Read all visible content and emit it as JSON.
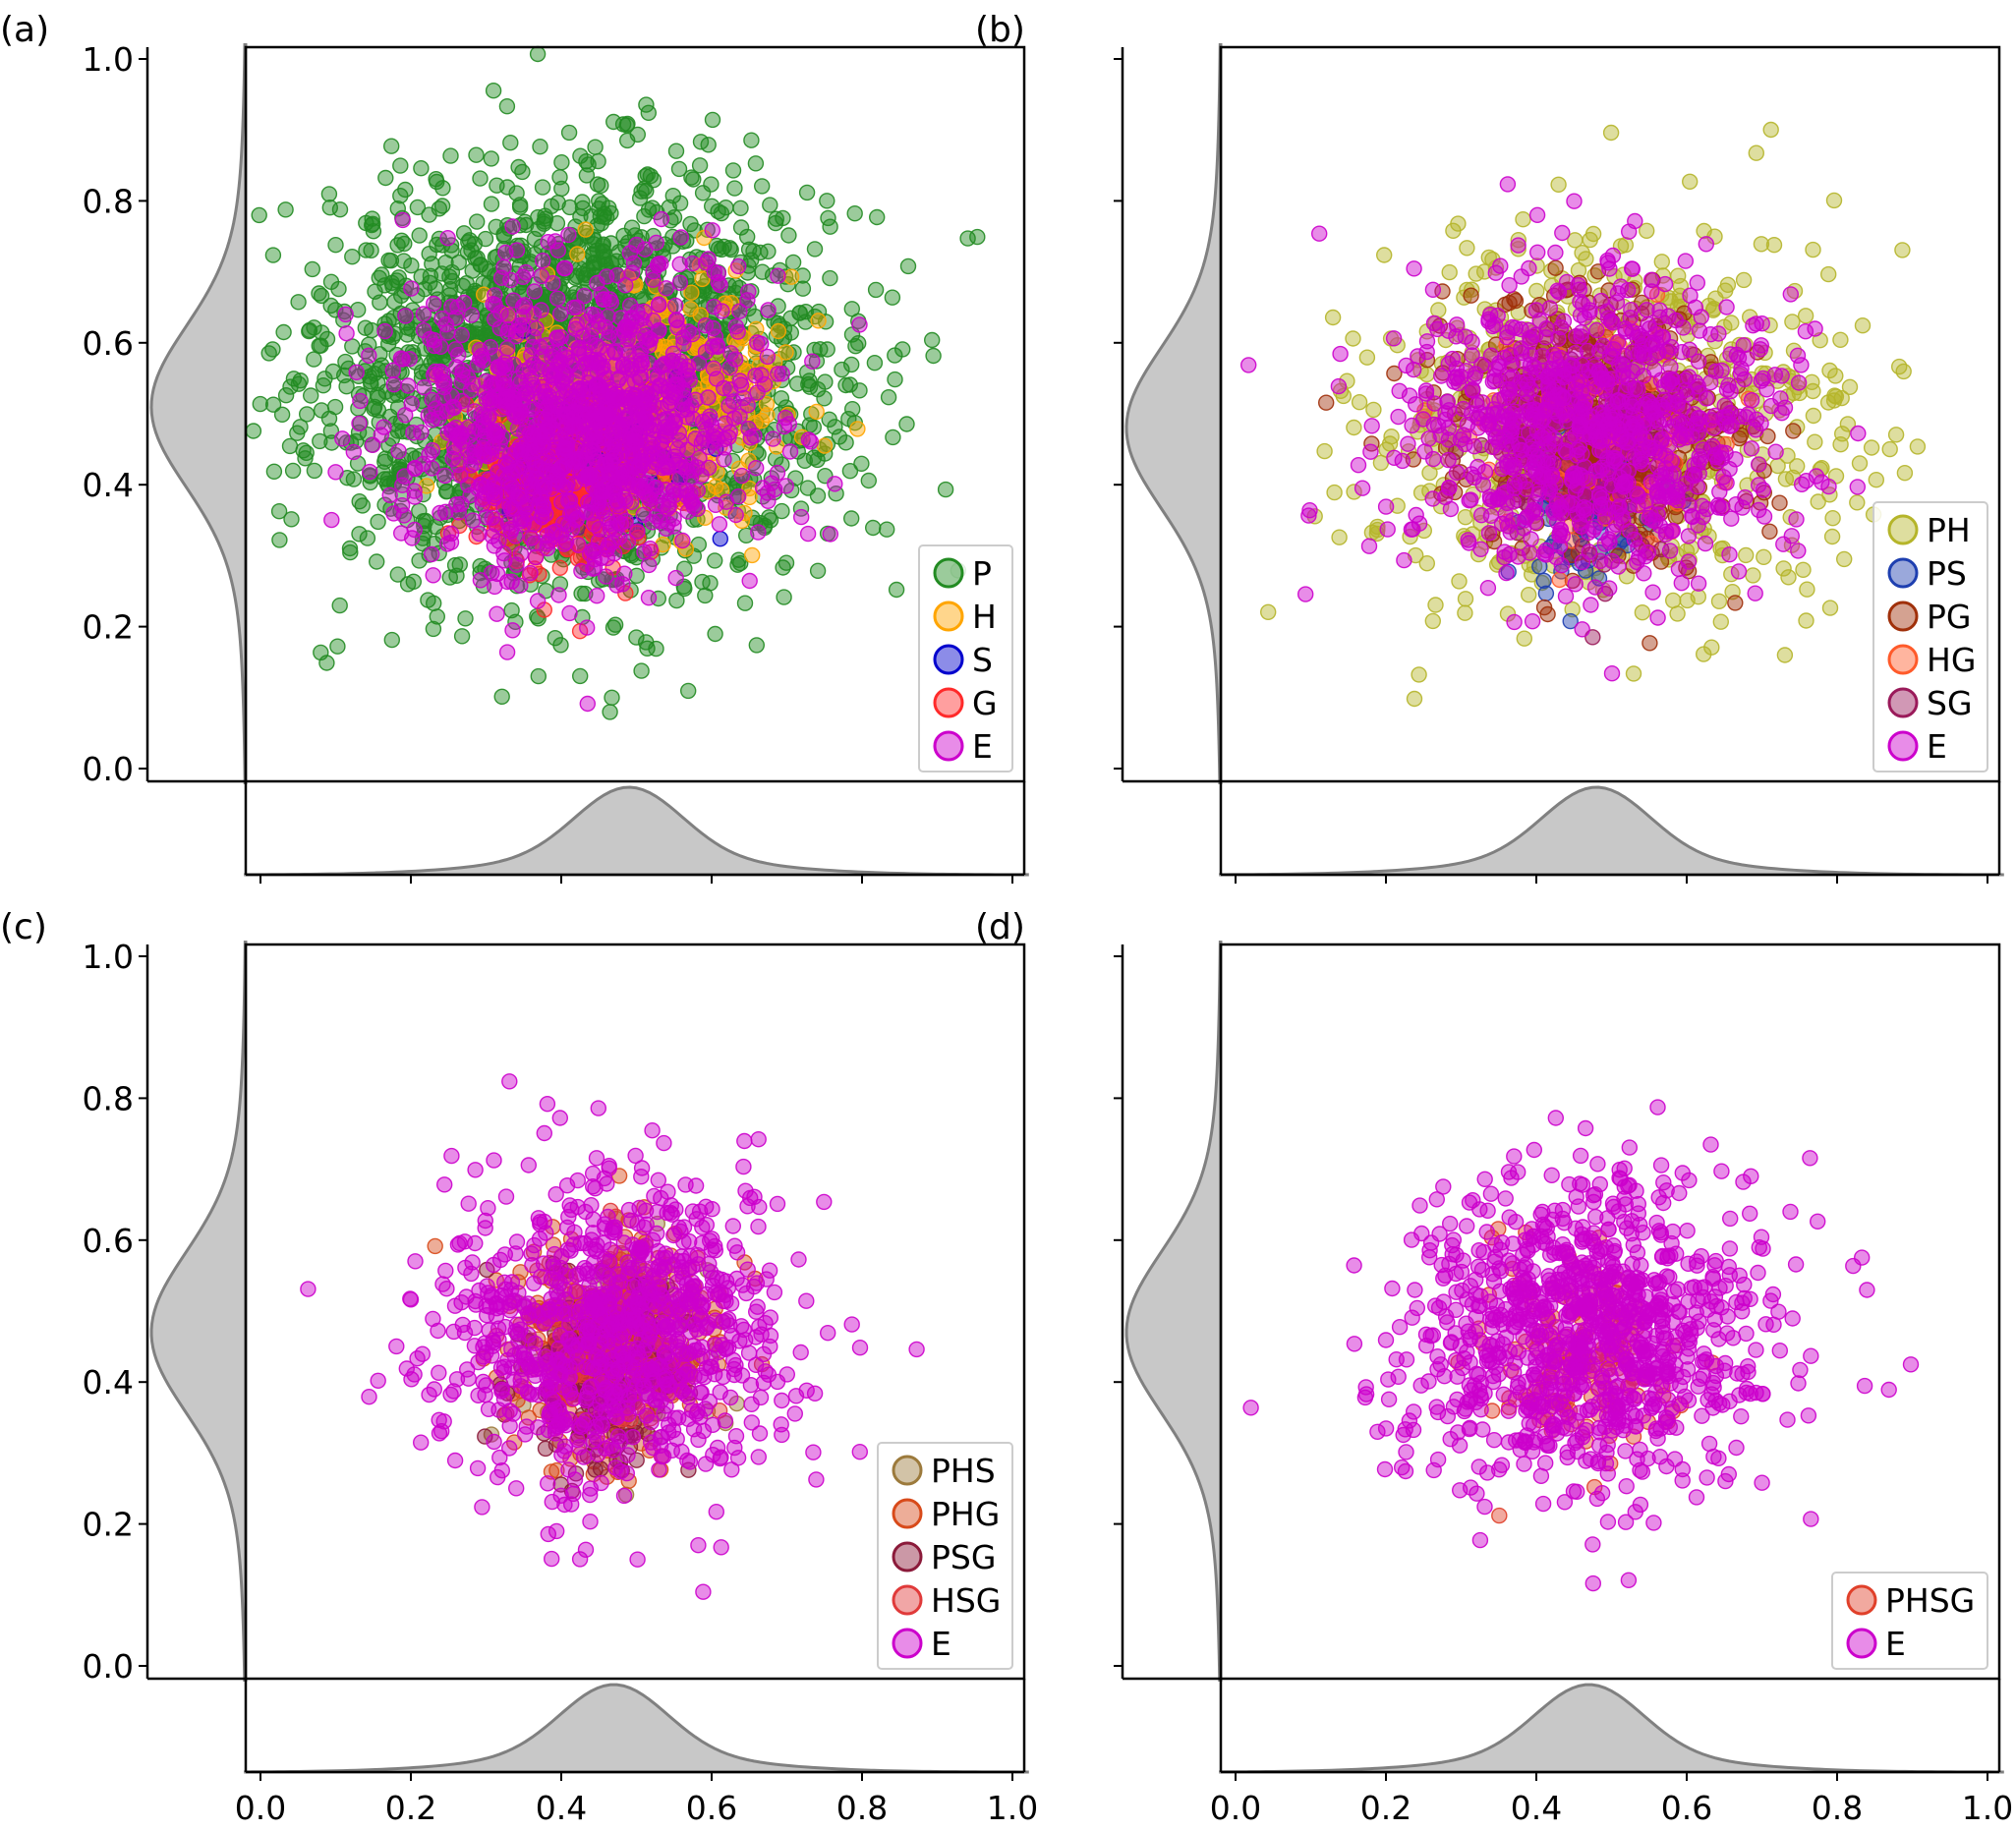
{
  "figure": {
    "title": ""
  },
  "chart_data": [
    {
      "panel": "(a)",
      "type": "scatter",
      "title": "",
      "xlabel": "",
      "ylabel": "",
      "xlim": [
        0.0,
        1.0
      ],
      "ylim": [
        0.0,
        1.0
      ],
      "xticks": [
        "0.0",
        "0.2",
        "0.4",
        "0.6",
        "0.8",
        "1.0"
      ],
      "yticks": [
        "0.0",
        "0.2",
        "0.4",
        "0.6",
        "0.8",
        "1.0"
      ],
      "grid": false,
      "legend_position": "bottom-right",
      "series": [
        {
          "name": "P",
          "color": "#228B22",
          "count": 2200,
          "cx": 0.42,
          "cy": 0.55,
          "sx": 0.17,
          "sy": 0.14
        },
        {
          "name": "H",
          "color": "#FFA500",
          "count": 450,
          "cx": 0.5,
          "cy": 0.51,
          "sx": 0.1,
          "sy": 0.08
        },
        {
          "name": "S",
          "color": "#0000CD",
          "count": 40,
          "cx": 0.45,
          "cy": 0.42,
          "sx": 0.06,
          "sy": 0.08
        },
        {
          "name": "G",
          "color": "#FF2A2A",
          "count": 250,
          "cx": 0.4,
          "cy": 0.4,
          "sx": 0.06,
          "sy": 0.06
        },
        {
          "name": "E",
          "color": "#CC00CC",
          "count": 1200,
          "cx": 0.43,
          "cy": 0.48,
          "sx": 0.12,
          "sy": 0.1
        }
      ],
      "x_density_peak": 0.49,
      "y_density_peak": 0.51
    },
    {
      "panel": "(b)",
      "type": "scatter",
      "title": "",
      "xlabel": "",
      "ylabel": "",
      "xlim": [
        0.0,
        1.0
      ],
      "ylim": [
        0.0,
        1.0
      ],
      "xticks": [
        "0.0",
        "0.2",
        "0.4",
        "0.6",
        "0.8",
        "1.0"
      ],
      "yticks": [
        "0.0",
        "0.2",
        "0.4",
        "0.6",
        "0.8",
        "1.0"
      ],
      "grid": false,
      "legend_position": "bottom-right",
      "series": [
        {
          "name": "PH",
          "color": "#B5B52A",
          "count": 700,
          "cx": 0.5,
          "cy": 0.48,
          "sx": 0.16,
          "sy": 0.13
        },
        {
          "name": "PS",
          "color": "#1E3FB0",
          "count": 90,
          "cx": 0.47,
          "cy": 0.38,
          "sx": 0.05,
          "sy": 0.06
        },
        {
          "name": "PG",
          "color": "#A0300A",
          "count": 500,
          "cx": 0.48,
          "cy": 0.48,
          "sx": 0.09,
          "sy": 0.09
        },
        {
          "name": "HG",
          "color": "#FF5A2A",
          "count": 80,
          "cx": 0.5,
          "cy": 0.47,
          "sx": 0.08,
          "sy": 0.08
        },
        {
          "name": "SG",
          "color": "#9A1A5A",
          "count": 60,
          "cx": 0.46,
          "cy": 0.43,
          "sx": 0.08,
          "sy": 0.08
        },
        {
          "name": "E",
          "color": "#CC00CC",
          "count": 900,
          "cx": 0.47,
          "cy": 0.48,
          "sx": 0.13,
          "sy": 0.11
        }
      ],
      "x_density_peak": 0.48,
      "y_density_peak": 0.48
    },
    {
      "panel": "(c)",
      "type": "scatter",
      "title": "",
      "xlabel": "",
      "ylabel": "",
      "xlim": [
        0.0,
        1.0
      ],
      "ylim": [
        0.0,
        1.0
      ],
      "xticks": [
        "0.0",
        "0.2",
        "0.4",
        "0.6",
        "0.8",
        "1.0"
      ],
      "yticks": [
        "0.0",
        "0.2",
        "0.4",
        "0.6",
        "0.8",
        "1.0"
      ],
      "grid": false,
      "legend_position": "bottom-right",
      "series": [
        {
          "name": "PHS",
          "color": "#9C7A3C",
          "count": 120,
          "cx": 0.46,
          "cy": 0.44,
          "sx": 0.06,
          "sy": 0.07
        },
        {
          "name": "PHG",
          "color": "#D84A1A",
          "count": 350,
          "cx": 0.46,
          "cy": 0.45,
          "sx": 0.07,
          "sy": 0.08
        },
        {
          "name": "PSG",
          "color": "#8B1A3A",
          "count": 150,
          "cx": 0.45,
          "cy": 0.42,
          "sx": 0.06,
          "sy": 0.07
        },
        {
          "name": "HSG",
          "color": "#E03A3A",
          "count": 120,
          "cx": 0.47,
          "cy": 0.45,
          "sx": 0.06,
          "sy": 0.07
        },
        {
          "name": "E",
          "color": "#CC00CC",
          "count": 900,
          "cx": 0.47,
          "cy": 0.47,
          "sx": 0.12,
          "sy": 0.11
        }
      ],
      "x_density_peak": 0.47,
      "y_density_peak": 0.47
    },
    {
      "panel": "(d)",
      "type": "scatter",
      "title": "",
      "xlabel": "",
      "ylabel": "",
      "xlim": [
        0.0,
        1.0
      ],
      "ylim": [
        0.0,
        1.0
      ],
      "xticks": [
        "0.0",
        "0.2",
        "0.4",
        "0.6",
        "0.8",
        "1.0"
      ],
      "yticks": [
        "0.0",
        "0.2",
        "0.4",
        "0.6",
        "0.8",
        "1.0"
      ],
      "grid": false,
      "legend_position": "bottom-right",
      "series": [
        {
          "name": "PHSG",
          "color": "#E0402A",
          "count": 150,
          "cx": 0.46,
          "cy": 0.43,
          "sx": 0.06,
          "sy": 0.07
        },
        {
          "name": "E",
          "color": "#CC00CC",
          "count": 1000,
          "cx": 0.47,
          "cy": 0.47,
          "sx": 0.12,
          "sy": 0.11
        }
      ],
      "x_density_peak": 0.47,
      "y_density_peak": 0.47
    }
  ]
}
